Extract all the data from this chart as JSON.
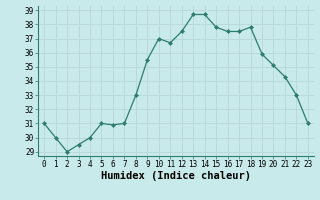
{
  "x": [
    0,
    1,
    2,
    3,
    4,
    5,
    6,
    7,
    8,
    9,
    10,
    11,
    12,
    13,
    14,
    15,
    16,
    17,
    18,
    19,
    20,
    21,
    22,
    23
  ],
  "y": [
    31,
    30,
    29,
    29.5,
    30,
    31,
    30.9,
    31,
    33,
    35.5,
    37,
    36.7,
    37.5,
    38.7,
    38.7,
    37.8,
    37.5,
    37.5,
    37.8,
    35.9,
    35.1,
    34.3,
    33.0,
    31.0
  ],
  "line_color": "#2e7d6e",
  "marker": "D",
  "marker_size": 2.0,
  "bg_color": "#c8eaea",
  "grid_color": "#b8d8d8",
  "xlabel": "Humidex (Indice chaleur)",
  "ylim": [
    29,
    39
  ],
  "xlim": [
    -0.5,
    23.5
  ],
  "yticks": [
    29,
    30,
    31,
    32,
    33,
    34,
    35,
    36,
    37,
    38,
    39
  ],
  "xticks": [
    0,
    1,
    2,
    3,
    4,
    5,
    6,
    7,
    8,
    9,
    10,
    11,
    12,
    13,
    14,
    15,
    16,
    17,
    18,
    19,
    20,
    21,
    22,
    23
  ],
  "tick_label_fontsize": 5.5,
  "xlabel_fontsize": 7.5,
  "linewidth": 0.9
}
